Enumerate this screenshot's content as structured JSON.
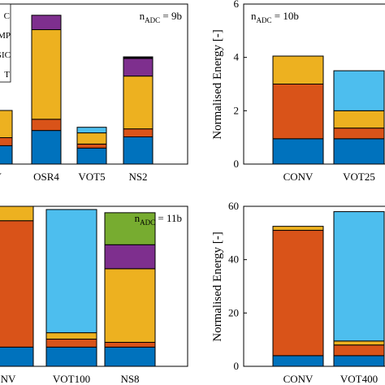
{
  "colors": {
    "blue": "#0072BD",
    "orange": "#D95319",
    "yellow": "#EDB120",
    "purple": "#7E2F8E",
    "green": "#77AC30",
    "light_blue": "#4DBEEE",
    "black": "#000000"
  },
  "legend_fragments": [
    "C",
    "MP",
    "GIC",
    "T"
  ],
  "chart_data": [
    {
      "type": "bar",
      "stacked": true,
      "annotation": {
        "prefix": "n",
        "sub": "ADC",
        "suffix": " = 9b"
      },
      "categories": [
        "V",
        "OSR4",
        "VOT5",
        "NS2"
      ],
      "ylim": [
        0,
        1
      ],
      "yticks": [],
      "ylabel": "",
      "grid": false,
      "series": [
        {
          "color": "blue",
          "values": [
            0.115,
            0.21,
            0.1,
            0.17
          ]
        },
        {
          "color": "orange",
          "values": [
            0.05,
            0.07,
            0.025,
            0.05
          ]
        },
        {
          "color": "yellow",
          "values": [
            0.17,
            0.56,
            0.07,
            0.33
          ]
        },
        {
          "color": "purple",
          "values": [
            0,
            0.09,
            0,
            0.11
          ]
        },
        {
          "color": "black",
          "values": [
            0,
            0,
            0,
            0.01
          ]
        },
        {
          "color": "light_blue",
          "values": [
            0,
            0,
            0.035,
            0
          ]
        }
      ]
    },
    {
      "type": "bar",
      "stacked": true,
      "annotation": {
        "prefix": "n",
        "sub": "ADC",
        "suffix": " = 10b"
      },
      "categories": [
        "CONV",
        "VOT25"
      ],
      "ylabel": "Normalised Energy [-]",
      "ylim": [
        0,
        6
      ],
      "yticks": [
        "0",
        "2",
        "4",
        "6"
      ],
      "grid": false,
      "series": [
        {
          "color": "blue",
          "values": [
            0.95,
            0.95
          ]
        },
        {
          "color": "orange",
          "values": [
            2.05,
            0.4
          ]
        },
        {
          "color": "yellow",
          "values": [
            1.05,
            0.65
          ]
        },
        {
          "color": "light_blue",
          "values": [
            0,
            1.5
          ]
        }
      ]
    },
    {
      "type": "bar",
      "stacked": true,
      "annotation": {
        "prefix": "n",
        "sub": "ADC",
        "suffix": " = 11b"
      },
      "categories": [
        "NV",
        "VOT100",
        "NS8"
      ],
      "ylim": [
        0,
        1
      ],
      "yticks": [],
      "ylabel": "",
      "grid": false,
      "series": [
        {
          "color": "blue",
          "values": [
            0.12,
            0.12,
            0.12
          ]
        },
        {
          "color": "orange",
          "values": [
            0.79,
            0.05,
            0.03
          ]
        },
        {
          "color": "yellow",
          "values": [
            0.09,
            0.04,
            0.46
          ]
        },
        {
          "color": "purple",
          "values": [
            0,
            0,
            0.15
          ]
        },
        {
          "color": "green",
          "values": [
            0,
            0,
            0.2
          ]
        },
        {
          "color": "light_blue",
          "values": [
            0,
            0.77,
            0
          ]
        }
      ]
    },
    {
      "type": "bar",
      "stacked": true,
      "annotation": null,
      "categories": [
        "CONV",
        "VOT400"
      ],
      "ylabel": "Normalised Energy [-]",
      "ylim": [
        0,
        60
      ],
      "yticks": [
        "0",
        "20",
        "40",
        "60"
      ],
      "grid": false,
      "series": [
        {
          "color": "blue",
          "values": [
            4,
            4
          ]
        },
        {
          "color": "orange",
          "values": [
            47,
            4
          ]
        },
        {
          "color": "yellow",
          "values": [
            1.5,
            1.5
          ]
        },
        {
          "color": "light_blue",
          "values": [
            0,
            48.5
          ]
        }
      ]
    }
  ]
}
